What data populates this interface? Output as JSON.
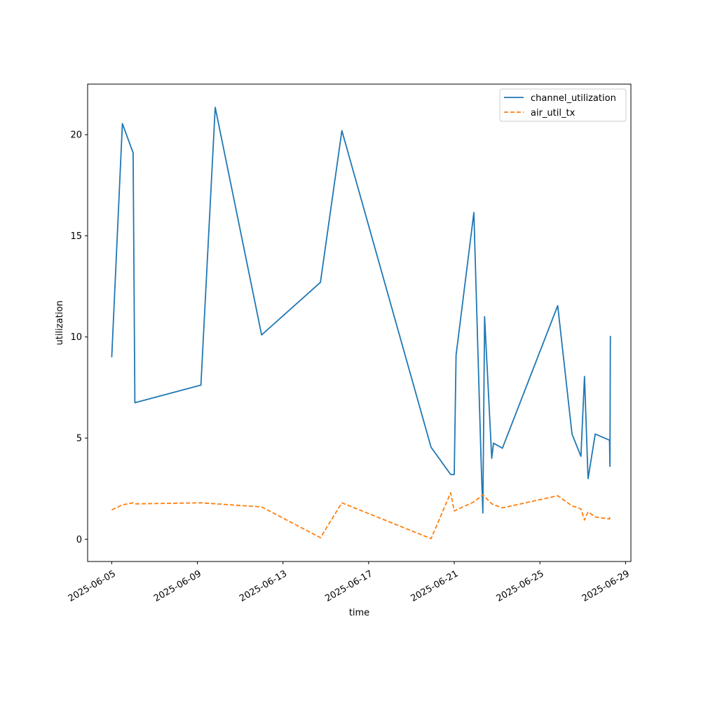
{
  "chart_data": {
    "type": "line",
    "title": "",
    "xlabel": "time",
    "ylabel": "utilization",
    "xlim": [
      "2025-06-03T21:00",
      "2025-06-29T06:00"
    ],
    "ylim": [
      -1.1,
      22.5
    ],
    "x_ticks": [
      "2025-06-05",
      "2025-06-09",
      "2025-06-13",
      "2025-06-17",
      "2025-06-21",
      "2025-06-25",
      "2025-06-29"
    ],
    "y_ticks": [
      0,
      5,
      10,
      15,
      20
    ],
    "grid": false,
    "legend_position": "top-right",
    "series": [
      {
        "name": "channel_utilization",
        "color": "#1f77b4",
        "dash": "solid",
        "points": [
          [
            "2025-06-05T00:00",
            9.0
          ],
          [
            "2025-06-05T12:00",
            20.55
          ],
          [
            "2025-06-06T00:00",
            19.1
          ],
          [
            "2025-06-06T02:00",
            6.75
          ],
          [
            "2025-06-09T04:00",
            7.62
          ],
          [
            "2025-06-09T20:00",
            21.35
          ],
          [
            "2025-06-12T00:00",
            10.1
          ],
          [
            "2025-06-14T18:00",
            12.7
          ],
          [
            "2025-06-15T18:00",
            20.2
          ],
          [
            "2025-06-19T22:00",
            4.55
          ],
          [
            "2025-06-20T20:00",
            3.2
          ],
          [
            "2025-06-21T00:00",
            3.2
          ],
          [
            "2025-06-21T02:00",
            9.1
          ],
          [
            "2025-06-21T22:00",
            16.15
          ],
          [
            "2025-06-22T06:00",
            4.0
          ],
          [
            "2025-06-22T08:00",
            1.3
          ],
          [
            "2025-06-22T10:00",
            11.0
          ],
          [
            "2025-06-22T18:00",
            4.0
          ],
          [
            "2025-06-22T20:00",
            4.75
          ],
          [
            "2025-06-23T06:00",
            4.5
          ],
          [
            "2025-06-25T20:00",
            11.55
          ],
          [
            "2025-06-26T12:00",
            5.2
          ],
          [
            "2025-06-26T22:00",
            4.1
          ],
          [
            "2025-06-27T02:00",
            8.05
          ],
          [
            "2025-06-27T06:00",
            3.0
          ],
          [
            "2025-06-27T14:00",
            5.2
          ],
          [
            "2025-06-28T06:00",
            4.9
          ],
          [
            "2025-06-28T06:30",
            3.6
          ],
          [
            "2025-06-28T07:00",
            10.05
          ]
        ]
      },
      {
        "name": "air_util_tx",
        "color": "#ff7f0e",
        "dash": "dashed",
        "points": [
          [
            "2025-06-05T00:00",
            1.45
          ],
          [
            "2025-06-05T12:00",
            1.7
          ],
          [
            "2025-06-06T00:00",
            1.8
          ],
          [
            "2025-06-06T02:00",
            1.75
          ],
          [
            "2025-06-09T04:00",
            1.8
          ],
          [
            "2025-06-12T00:00",
            1.6
          ],
          [
            "2025-06-14T18:00",
            0.08
          ],
          [
            "2025-06-15T18:00",
            1.8
          ],
          [
            "2025-06-19T22:00",
            0.03
          ],
          [
            "2025-06-20T20:00",
            2.3
          ],
          [
            "2025-06-21T00:00",
            1.4
          ],
          [
            "2025-06-21T22:00",
            1.85
          ],
          [
            "2025-06-22T08:00",
            2.2
          ],
          [
            "2025-06-22T18:00",
            1.75
          ],
          [
            "2025-06-23T06:00",
            1.55
          ],
          [
            "2025-06-25T20:00",
            2.15
          ],
          [
            "2025-06-26T12:00",
            1.65
          ],
          [
            "2025-06-26T22:00",
            1.5
          ],
          [
            "2025-06-27T02:00",
            0.95
          ],
          [
            "2025-06-27T06:00",
            1.35
          ],
          [
            "2025-06-27T14:00",
            1.1
          ],
          [
            "2025-06-28T06:00",
            1.0
          ],
          [
            "2025-06-28T07:00",
            1.2
          ]
        ]
      }
    ]
  }
}
